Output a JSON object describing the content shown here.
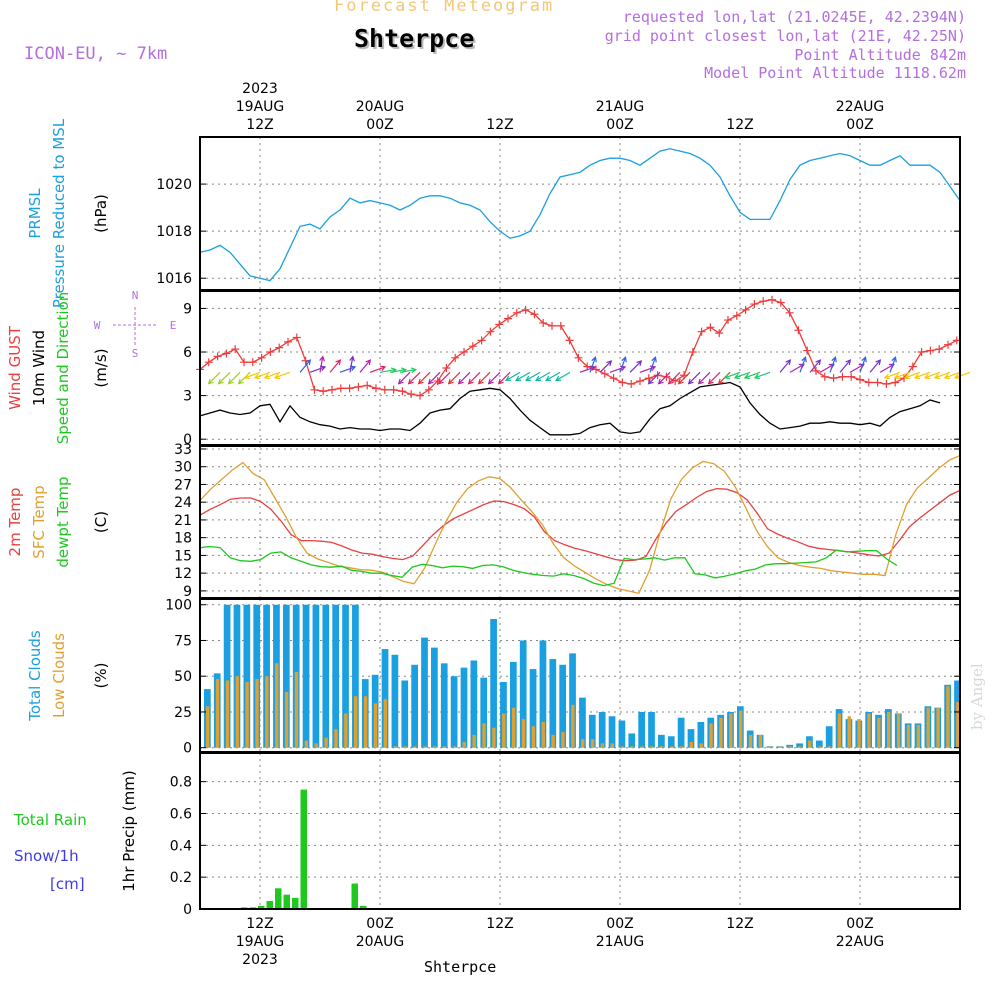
{
  "header": {
    "title": "Forecast Meteogram",
    "location": "Shterpce",
    "model": "ICON-EU, ~ 7km",
    "requested": "requested lon,lat (21.0245E, 42.2394N)",
    "gridpoint": "grid point closest lon,lat (21E, 42.25N)",
    "point_alt": "Point Altitude 842m",
    "model_alt": "Model Point Altitude 1118.62m",
    "credit": "by Angel",
    "footer_location": "Shterpce"
  },
  "time_axis": {
    "top_labels": [
      {
        "t": 12,
        "lines": [
          "2023",
          "19AUG",
          "12Z"
        ]
      },
      {
        "t": 24,
        "lines": [
          "20AUG",
          "00Z"
        ]
      },
      {
        "t": 36,
        "lines": [
          "12Z"
        ]
      },
      {
        "t": 48,
        "lines": [
          "21AUG",
          "00Z"
        ]
      },
      {
        "t": 60,
        "lines": [
          "12Z"
        ]
      },
      {
        "t": 72,
        "lines": [
          "22AUG",
          "00Z"
        ]
      }
    ],
    "bottom_labels": [
      {
        "t": 12,
        "lines": [
          "12Z",
          "19AUG",
          "2023"
        ]
      },
      {
        "t": 24,
        "lines": [
          "00Z",
          "20AUG"
        ]
      },
      {
        "t": 36,
        "lines": [
          "12Z"
        ]
      },
      {
        "t": 48,
        "lines": [
          "00Z",
          "21AUG"
        ]
      },
      {
        "t": 60,
        "lines": [
          "12Z"
        ]
      },
      {
        "t": 72,
        "lines": [
          "00Z",
          "22AUG"
        ]
      }
    ],
    "range_hours": [
      6,
      82
    ],
    "grid_hours": [
      12,
      24,
      36,
      48,
      60,
      72
    ]
  },
  "colors": {
    "pressure": "#1a9fe0",
    "gust": "#f03c3c",
    "wind": "#000000",
    "wind_label": "#1ec81e",
    "temp": "#e84040",
    "sfc": "#e0a030",
    "dew": "#1ec81e",
    "total_cloud": "#1a9fe0",
    "low_cloud": "#e0a030",
    "rain": "#1ec81e",
    "snow": "#3c3ce6",
    "header_purple": "#b46ee0",
    "title_orange": "#f0c878"
  },
  "chart_data": [
    {
      "type": "line",
      "title": "Pressure Reduced to MSL",
      "label_lines": [
        {
          "text": "PRMSL",
          "color": "pressure"
        },
        {
          "text": "Pressure Reduced to MSL",
          "color": "pressure"
        }
      ],
      "ylabel": "(hPa)",
      "ylim": [
        1015.5,
        1022.0
      ],
      "yticks": [
        1016,
        1018,
        1020
      ],
      "series": [
        {
          "name": "PRMSL",
          "color": "pressure",
          "values": [
            1017.1,
            1017.2,
            1017.4,
            1017.1,
            1016.6,
            1016.1,
            1016.0,
            1015.9,
            1016.4,
            1017.3,
            1018.2,
            1018.3,
            1018.1,
            1018.6,
            1018.9,
            1019.4,
            1019.2,
            1019.3,
            1019.2,
            1019.1,
            1018.9,
            1019.1,
            1019.4,
            1019.5,
            1019.5,
            1019.4,
            1019.2,
            1019.1,
            1018.9,
            1018.4,
            1018.0,
            1017.7,
            1017.8,
            1018.0,
            1018.7,
            1019.6,
            1020.3,
            1020.4,
            1020.5,
            1020.8,
            1021.0,
            1021.1,
            1021.1,
            1021.0,
            1020.8,
            1021.1,
            1021.4,
            1021.5,
            1021.4,
            1021.3,
            1021.1,
            1020.8,
            1020.3,
            1019.5,
            1018.8,
            1018.5,
            1018.5,
            1018.5,
            1019.3,
            1020.2,
            1020.8,
            1021.0,
            1021.1,
            1021.2,
            1021.3,
            1021.2,
            1021.0,
            1020.8,
            1020.8,
            1021.0,
            1021.2,
            1020.8,
            1020.8,
            1020.8,
            1020.5,
            1019.9,
            1019.3
          ]
        }
      ]
    },
    {
      "type": "line",
      "title": "Wind GUST / 10m Wind Speed and Direction",
      "label_lines": [
        {
          "text": "Wind GUST",
          "color": "gust"
        },
        {
          "text": "10m Wind",
          "color": "wind"
        },
        {
          "text": "Speed and Direction",
          "color": "wind_label"
        }
      ],
      "ylabel": "(m/s)",
      "compass": [
        "N",
        "W",
        "E",
        "S"
      ],
      "ylim": [
        -0.4,
        10.2
      ],
      "yticks": [
        0,
        3,
        6,
        9
      ],
      "series": [
        {
          "name": "Wind GUST",
          "color": "gust",
          "marker": "+",
          "values": [
            4.8,
            5.3,
            5.7,
            5.9,
            6.2,
            5.3,
            5.3,
            5.6,
            6.0,
            6.3,
            6.7,
            7.0,
            5.4,
            3.4,
            3.3,
            3.4,
            3.5,
            3.5,
            3.6,
            3.7,
            3.5,
            3.4,
            3.4,
            3.3,
            3.1,
            3.0,
            3.4,
            4.0,
            4.9,
            5.6,
            6.0,
            6.4,
            6.8,
            7.4,
            7.9,
            8.3,
            8.7,
            8.9,
            8.6,
            8.0,
            7.8,
            7.8,
            6.8,
            5.6,
            5.0,
            4.8,
            4.5,
            4.2,
            3.9,
            3.8,
            4.0,
            4.2,
            4.4,
            4.3,
            4.0,
            4.4,
            6.0,
            7.4,
            7.7,
            7.3,
            8.2,
            8.5,
            8.9,
            9.3,
            9.5,
            9.6,
            9.4,
            8.7,
            7.5,
            6.1,
            4.7,
            4.3,
            4.2,
            4.3,
            4.3,
            4.1,
            3.9,
            3.9,
            3.8,
            3.9,
            4.2,
            5.0,
            6.0,
            6.1,
            6.2,
            6.5,
            6.8,
            6.9
          ],
          "x_start": 6,
          "x_step": 0.88
        },
        {
          "name": "10m Wind",
          "color": "wind",
          "values": [
            1.6,
            1.8,
            2.0,
            1.8,
            1.7,
            1.8,
            2.3,
            2.4,
            1.2,
            2.3,
            1.5,
            1.2,
            1.0,
            0.9,
            0.7,
            0.8,
            0.7,
            0.7,
            0.6,
            0.7,
            0.7,
            0.6,
            1.1,
            1.8,
            2.0,
            2.1,
            2.8,
            3.3,
            3.4,
            3.5,
            3.4,
            2.8,
            2.0,
            1.3,
            0.8,
            0.3,
            0.3,
            0.3,
            0.4,
            0.8,
            1.0,
            1.1,
            0.5,
            0.4,
            0.5,
            1.4,
            2.1,
            2.3,
            2.8,
            3.2,
            3.6,
            3.7,
            3.8,
            3.9,
            3.6,
            2.5,
            1.7,
            1.1,
            0.7,
            0.8,
            0.9,
            1.1,
            1.1,
            1.2,
            1.1,
            1.1,
            1.0,
            1.1,
            0.9,
            1.5,
            1.9,
            2.1,
            2.3,
            2.7,
            2.5
          ],
          "x_start": 6,
          "x_step": 1.0
        }
      ]
    },
    {
      "type": "line",
      "title": "2m Temp / SFC Temp / dewpt Temp",
      "label_lines": [
        {
          "text": "2m Temp",
          "color": "temp"
        },
        {
          "text": "SFC Temp",
          "color": "sfc"
        },
        {
          "text": "dewpt Temp",
          "color": "dew"
        }
      ],
      "ylabel": "(C)",
      "ylim": [
        7.8,
        33.5
      ],
      "yticks": [
        9,
        12,
        15,
        18,
        21,
        24,
        27,
        30,
        33
      ],
      "series": [
        {
          "name": "2m Temp",
          "color": "temp",
          "values": [
            21.8,
            22.8,
            23.6,
            24.5,
            24.7,
            24.7,
            24.1,
            22.8,
            20.8,
            18.5,
            17.5,
            17.5,
            17.4,
            17.2,
            16.6,
            15.9,
            15.4,
            15.2,
            14.8,
            14.5,
            14.3,
            14.9,
            16.7,
            18.5,
            20.0,
            21.2,
            22.0,
            22.8,
            23.6,
            24.2,
            24.1,
            23.6,
            22.9,
            21.5,
            19.0,
            17.5,
            16.8,
            16.2,
            15.8,
            15.3,
            14.8,
            14.3,
            14.1,
            14.2,
            14.8,
            17.8,
            20.5,
            22.5,
            23.6,
            24.8,
            25.8,
            26.3,
            26.2,
            25.6,
            24.4,
            22.1,
            19.5,
            18.6,
            17.9,
            17.3,
            16.6,
            16.2,
            16.0,
            15.8,
            15.6,
            15.4,
            15.1,
            14.9,
            15.4,
            17.5,
            19.8,
            21.3,
            22.6,
            23.9,
            25.2,
            26.0
          ]
        },
        {
          "name": "SFC Temp",
          "color": "sfc",
          "values": [
            24.3,
            26.2,
            27.8,
            29.4,
            30.7,
            28.8,
            27.8,
            24.7,
            21.6,
            18.1,
            15.4,
            14.4,
            13.8,
            13.2,
            12.9,
            12.6,
            12.5,
            12.2,
            11.4,
            10.6,
            10.2,
            12.9,
            17.0,
            20.8,
            24.0,
            26.3,
            27.6,
            28.3,
            28.0,
            26.5,
            24.4,
            22.4,
            20.2,
            17.0,
            14.6,
            13.2,
            12.1,
            11.0,
            10.1,
            9.4,
            9.0,
            8.6,
            12.5,
            19.0,
            24.6,
            27.9,
            29.8,
            30.9,
            30.5,
            29.2,
            26.6,
            23.0,
            19.2,
            16.5,
            14.6,
            13.8,
            13.3,
            13.0,
            12.8,
            12.4,
            12.2,
            12.0,
            11.8,
            11.8,
            11.6,
            18.5,
            23.6,
            26.4,
            28.0,
            29.7,
            31.1,
            31.9
          ]
        },
        {
          "name": "dewpt Temp",
          "color": "dew",
          "values": [
            16.3,
            16.5,
            16.3,
            14.6,
            14.1,
            14.0,
            14.3,
            15.4,
            15.6,
            14.6,
            14.0,
            13.4,
            13.1,
            13.0,
            13.2,
            12.5,
            12.3,
            12.0,
            12.0,
            11.6,
            11.3,
            13.0,
            13.5,
            13.3,
            12.9,
            13.2,
            13.1,
            12.8,
            13.3,
            13.4,
            13.1,
            12.5,
            12.1,
            11.8,
            11.6,
            11.5,
            11.9,
            11.6,
            11.1,
            10.3,
            9.9,
            10.3,
            14.5,
            14.3,
            14.4,
            14.6,
            14.2,
            14.6,
            14.6,
            11.9,
            11.7,
            11.2,
            11.5,
            11.9,
            12.4,
            12.7,
            13.4,
            13.6,
            13.6,
            13.7,
            13.8,
            13.9,
            14.6,
            15.9,
            15.6,
            15.7,
            15.8,
            15.8,
            14.4,
            13.3
          ],
          "x_start": 6,
          "x_step": 1.01
        }
      ]
    },
    {
      "type": "bar",
      "title": "Total Clouds / Low Clouds",
      "label_lines": [
        {
          "text": "Total Clouds",
          "color": "total_cloud"
        },
        {
          "text": "Low Clouds",
          "color": "low_cloud"
        }
      ],
      "ylabel": "(%)",
      "ylim": [
        -3,
        104
      ],
      "yticks": [
        0,
        25,
        50,
        75,
        100
      ],
      "series": [
        {
          "name": "Total Clouds",
          "color": "total_cloud",
          "values": [
            41,
            52,
            100,
            100,
            100,
            100,
            100,
            100,
            100,
            100,
            100,
            100,
            100,
            100,
            100,
            100,
            48,
            51,
            69,
            65,
            47,
            58,
            77,
            70,
            59,
            50,
            56,
            61,
            49,
            90,
            46,
            60,
            75,
            55,
            75,
            62,
            58,
            66,
            35,
            23,
            25,
            22,
            19,
            10,
            25,
            25,
            9,
            8,
            21,
            13,
            18,
            21,
            23,
            25,
            29,
            12,
            9,
            1,
            1,
            2,
            3,
            8,
            5,
            15,
            27,
            20,
            19,
            25,
            23,
            27,
            24,
            17,
            17,
            29,
            28,
            44,
            47
          ]
        },
        {
          "name": "Low Clouds",
          "color": "low_cloud",
          "values": [
            29,
            48,
            47,
            50,
            46,
            48,
            50,
            59,
            39,
            53,
            5,
            3,
            7,
            13,
            24,
            36,
            36,
            31,
            34,
            1,
            1,
            1,
            1,
            1,
            1,
            1,
            4,
            9,
            17,
            14,
            24,
            28,
            20,
            15,
            18,
            9,
            11,
            30,
            6,
            6,
            3,
            3,
            1,
            1,
            1,
            1,
            1,
            1,
            1,
            4,
            3,
            17,
            21,
            24,
            26,
            9,
            9,
            1,
            1,
            1,
            1,
            5,
            1,
            1,
            24,
            22,
            20,
            24,
            21,
            25,
            24,
            16,
            16,
            28,
            28,
            43,
            32
          ]
        }
      ]
    },
    {
      "type": "bar",
      "title": "1hr Precip",
      "label_lines": [
        {
          "text": "Total  Rain",
          "color": "rain"
        },
        {
          "text": "Snow/1h",
          "color": "snow"
        },
        {
          "text": "[cm]",
          "color": "snow"
        }
      ],
      "ylabel": "1hr Precip (mm)",
      "ylim": [
        0,
        0.98
      ],
      "yticks": [
        0,
        0.2,
        0.4,
        0.6,
        0.8
      ],
      "series": [
        {
          "name": "Total Rain",
          "color": "rain",
          "values": [
            0,
            0,
            0.01,
            0.01,
            0.02,
            0.05,
            0.13,
            0.09,
            0.07,
            0.75,
            0,
            0,
            0,
            0,
            0,
            0.16,
            0.02
          ]
        }
      ]
    }
  ]
}
